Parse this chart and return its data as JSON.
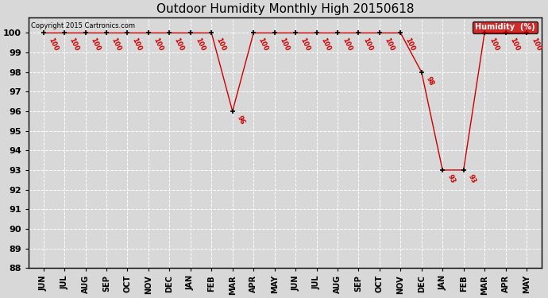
{
  "title": "Outdoor Humidity Monthly High 20150618",
  "copyright": "Copyright 2015 Cartronics.com",
  "legend_label": "Humidity  (%)",
  "x_labels": [
    "JUN",
    "JUL",
    "AUG",
    "SEP",
    "OCT",
    "NOV",
    "DEC",
    "JAN",
    "FEB",
    "MAR",
    "APR",
    "MAY",
    "JUN",
    "JUL",
    "AUG",
    "SEP",
    "OCT",
    "NOV",
    "DEC",
    "JAN",
    "FEB",
    "MAR",
    "APR",
    "MAY"
  ],
  "y_values": [
    100,
    100,
    100,
    100,
    100,
    100,
    100,
    100,
    100,
    96,
    100,
    100,
    100,
    100,
    100,
    100,
    100,
    100,
    98,
    93,
    93,
    100,
    100,
    100
  ],
  "ylim_min": 88,
  "ylim_max": 100.8,
  "yticks": [
    88,
    89,
    90,
    91,
    92,
    93,
    94,
    95,
    96,
    97,
    98,
    99,
    100
  ],
  "line_color": "#cc0000",
  "marker_color": "#000000",
  "bg_color": "#d8d8d8",
  "grid_color": "#ffffff",
  "title_fontsize": 11,
  "annotation_color": "#cc0000",
  "legend_bg": "#cc0000",
  "legend_text_color": "#ffffff"
}
